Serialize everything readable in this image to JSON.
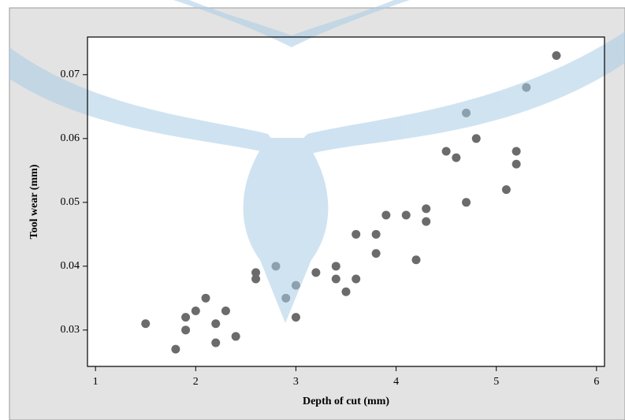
{
  "chart_data": {
    "type": "scatter",
    "x_label": "Depth of cut (mm)",
    "y_label": "Tool wear (mm)",
    "x": [
      1.5,
      1.8,
      1.9,
      1.9,
      2.0,
      2.1,
      2.2,
      2.2,
      2.3,
      2.4,
      2.6,
      2.6,
      2.8,
      2.9,
      3.0,
      3.0,
      3.2,
      3.4,
      3.4,
      3.5,
      3.6,
      3.6,
      3.8,
      3.8,
      3.9,
      4.1,
      4.2,
      4.3,
      4.3,
      4.5,
      4.6,
      4.7,
      4.7,
      4.8,
      5.1,
      5.2,
      5.2,
      5.3,
      5.6
    ],
    "values": [
      0.031,
      0.027,
      0.032,
      0.03,
      0.033,
      0.035,
      0.031,
      0.028,
      0.033,
      0.029,
      0.039,
      0.038,
      0.04,
      0.035,
      0.037,
      0.032,
      0.039,
      0.04,
      0.038,
      0.036,
      0.045,
      0.038,
      0.045,
      0.042,
      0.048,
      0.048,
      0.041,
      0.049,
      0.047,
      0.058,
      0.057,
      0.064,
      0.05,
      0.06,
      0.052,
      0.058,
      0.056,
      0.068,
      0.073
    ],
    "color": "#6b6b6b",
    "xlim": [
      0.92,
      6.08
    ],
    "xticks": [
      1,
      2,
      3,
      4,
      5,
      6
    ],
    "ylim": [
      0.0243,
      0.0759
    ],
    "yticks": [
      0.03,
      0.04,
      0.05,
      0.06,
      0.07
    ]
  }
}
